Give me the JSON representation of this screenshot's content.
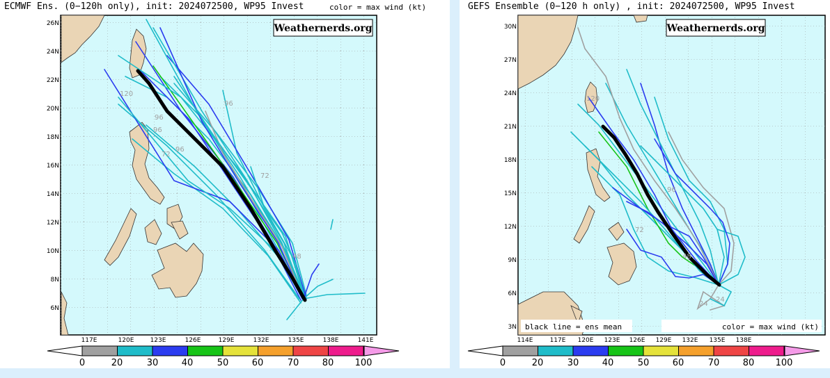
{
  "left_panel": {
    "title": "ECMWF Ens. (0−120h only), init: 2024072500, WP95 Invest",
    "color_note": "color = max wind (kt)",
    "watermark": "Weathernerds.org",
    "lat_labels": [
      "26N",
      "24N",
      "22N",
      "20N",
      "18N",
      "16N",
      "14N",
      "12N",
      "10N",
      "8N",
      "6N"
    ],
    "lon_labels": [
      "117E",
      "120E",
      "123E",
      "126E",
      "129E",
      "132E",
      "135E",
      "138E",
      "141E"
    ],
    "hour_labels": [
      "120",
      "96",
      "96",
      "72",
      "96",
      "96",
      "72",
      "48"
    ]
  },
  "right_panel": {
    "title": "GEFS Ensemble (0−120 h only) , init: 2024072500, WP95 Invest",
    "watermark": "Weathernerds.org",
    "legend_left": "black line = ens mean",
    "legend_right": "color = max wind (kt)",
    "lat_labels": [
      "30N",
      "27N",
      "24N",
      "21N",
      "18N",
      "15N",
      "12N",
      "9N",
      "6N",
      "3N"
    ],
    "lon_labels": [
      "114E",
      "117E",
      "120E",
      "123E",
      "126E",
      "129E",
      "132E",
      "135E",
      "138E"
    ],
    "hour_labels": [
      "120",
      "96",
      "72",
      "48",
      "24",
      "24"
    ]
  },
  "colorbar": {
    "ticks": [
      "0",
      "20",
      "30",
      "40",
      "50",
      "60",
      "70",
      "80",
      "100"
    ],
    "colors": [
      "#a0a0a0",
      "#1fbcc9",
      "#2b3cf0",
      "#17c417",
      "#e5e23a",
      "#f5a02c",
      "#ef4545",
      "#ee1c8c",
      "#f59be8"
    ]
  },
  "colors": {
    "ocean": "#d4f9fc",
    "land": "#ead5b5",
    "mean_track": "#000000"
  }
}
